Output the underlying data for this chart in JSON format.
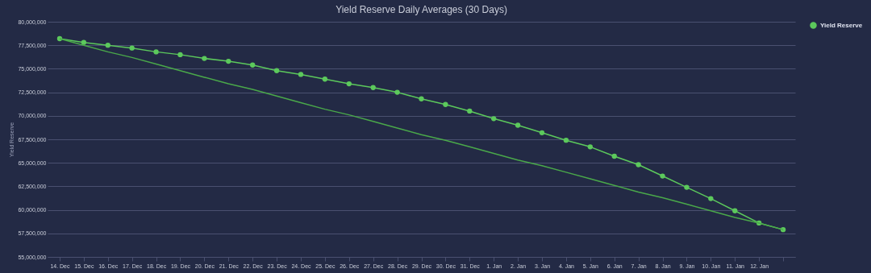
{
  "chart_data": {
    "type": "line",
    "title": "Yield Reserve Daily Averages (30 Days)",
    "ylabel": "Yield Reserve",
    "categories": [
      "14. Dec",
      "15. Dec",
      "16. Dec",
      "17. Dec",
      "18. Dec",
      "19. Dec",
      "20. Dec",
      "21. Dec",
      "22. Dec",
      "23. Dec",
      "24. Dec",
      "25. Dec",
      "26. Dec",
      "27. Dec",
      "28. Dec",
      "29. Dec",
      "30. Dec",
      "31. Dec",
      "1. Jan",
      "2. Jan",
      "3. Jan",
      "4. Jan",
      "5. Jan",
      "6. Jan",
      "7. Jan",
      "8. Jan",
      "9. Jan",
      "10. Jan",
      "11. Jan",
      "12. Jan",
      null
    ],
    "series": [
      {
        "name": "Yield Reserve",
        "color": "#5cc95c",
        "marker": "circle",
        "values": [
          78200000,
          77800000,
          77500000,
          77200000,
          76800000,
          76500000,
          76100000,
          75800000,
          75400000,
          74800000,
          74400000,
          73900000,
          73400000,
          73000000,
          72500000,
          71800000,
          71200000,
          70500000,
          69700000,
          69000000,
          68200000,
          67400000,
          66700000,
          65700000,
          64800000,
          63600000,
          62400000,
          61200000,
          59900000,
          58600000,
          57900000
        ]
      },
      {
        "color": "#4aa84a",
        "values": [
          78200000,
          77500000,
          76800000,
          76200000,
          75500000,
          74800000,
          74100000,
          73400000,
          72800000,
          72100000,
          71400000,
          70700000,
          70100000,
          69400000,
          68700000,
          68000000,
          67400000,
          66700000,
          66000000,
          65300000,
          64700000,
          64000000,
          63300000,
          62600000,
          61900000,
          61300000,
          60600000,
          59900000,
          59200000,
          58600000,
          57900000
        ]
      }
    ],
    "ylim": [
      55000000,
      80000000
    ],
    "yticks": [
      {
        "value": 55000000,
        "label": "55,000,000"
      },
      {
        "value": 57500000,
        "label": "57,500,000"
      },
      {
        "value": 60000000,
        "label": "60,000,000"
      },
      {
        "value": 62500000,
        "label": "62,500,000"
      },
      {
        "value": 65000000,
        "label": "65,000,000"
      },
      {
        "value": 67500000,
        "label": "67,500,000"
      },
      {
        "value": 70000000,
        "label": "70,000,000"
      },
      {
        "value": 72500000,
        "label": "72,500,000"
      },
      {
        "value": 75000000,
        "label": "75,000,000"
      },
      {
        "value": 77500000,
        "label": "77,500,000"
      },
      {
        "value": 80000000,
        "label": "80,000,000"
      }
    ],
    "grid": "y",
    "legend": "right"
  }
}
